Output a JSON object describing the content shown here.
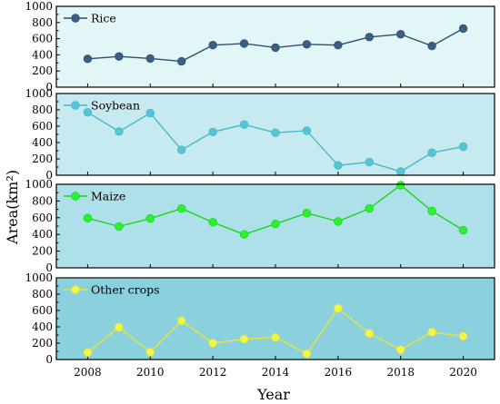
{
  "chart_data": {
    "type": "line",
    "x": [
      2008,
      2009,
      2010,
      2011,
      2012,
      2013,
      2014,
      2015,
      2016,
      2017,
      2018,
      2019,
      2020
    ],
    "xlabel": "Year",
    "ylabel": "Area(km²)",
    "xlim": [
      2007,
      2021
    ],
    "x_ticks": [
      "2008",
      "2010",
      "2012",
      "2014",
      "2016",
      "2018",
      "2020"
    ],
    "ylim": [
      0,
      1000
    ],
    "y_ticks": [
      "0",
      "200",
      "400",
      "600",
      "800",
      "1000"
    ],
    "grid": false,
    "legend_placement": "top-left",
    "panels": [
      {
        "name": "Rice",
        "line_color": "#2f4f72",
        "marker_color": "#3b5e86",
        "background": "#e3f6f7",
        "values": [
          350,
          380,
          355,
          320,
          520,
          540,
          490,
          530,
          520,
          620,
          655,
          510,
          725
        ]
      },
      {
        "name": "Soybean",
        "line_color": "#46b9c9",
        "marker_color": "#56c4d2",
        "background": "#c6eaef",
        "values": [
          770,
          535,
          760,
          310,
          530,
          620,
          520,
          545,
          120,
          160,
          45,
          275,
          350
        ]
      },
      {
        "name": "Maize",
        "line_color": "#1ad71a",
        "marker_color": "#2ef02e",
        "background": "#ade0e8",
        "values": [
          595,
          495,
          590,
          710,
          545,
          400,
          525,
          655,
          555,
          710,
          990,
          680,
          450
        ]
      },
      {
        "name": "Other crops",
        "line_color": "#e6e635",
        "marker_color": "#f4f44a",
        "background": "#8ad1dd",
        "values": [
          85,
          395,
          90,
          475,
          200,
          250,
          270,
          70,
          625,
          320,
          120,
          335,
          285
        ]
      }
    ]
  }
}
